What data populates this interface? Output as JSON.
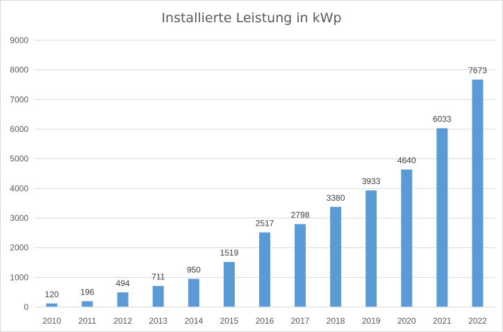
{
  "chart_data": {
    "type": "bar",
    "title": "Installierte Leistung in kWp",
    "xlabel": "",
    "ylabel": "",
    "categories": [
      "2010",
      "2011",
      "2012",
      "2013",
      "2014",
      "2015",
      "2016",
      "2017",
      "2018",
      "2019",
      "2020",
      "2021",
      "2022"
    ],
    "values": [
      120,
      196,
      494,
      711,
      950,
      1519,
      2517,
      2798,
      3380,
      3933,
      4640,
      6033,
      7673
    ],
    "ylim": [
      0,
      9000
    ],
    "yticks": [
      0,
      1000,
      2000,
      3000,
      4000,
      5000,
      6000,
      7000,
      8000,
      9000
    ],
    "grid": true,
    "legend": "none",
    "bar_color": "#5b9bd5",
    "grid_color": "#d9d9d9",
    "text_color": "#595959"
  }
}
